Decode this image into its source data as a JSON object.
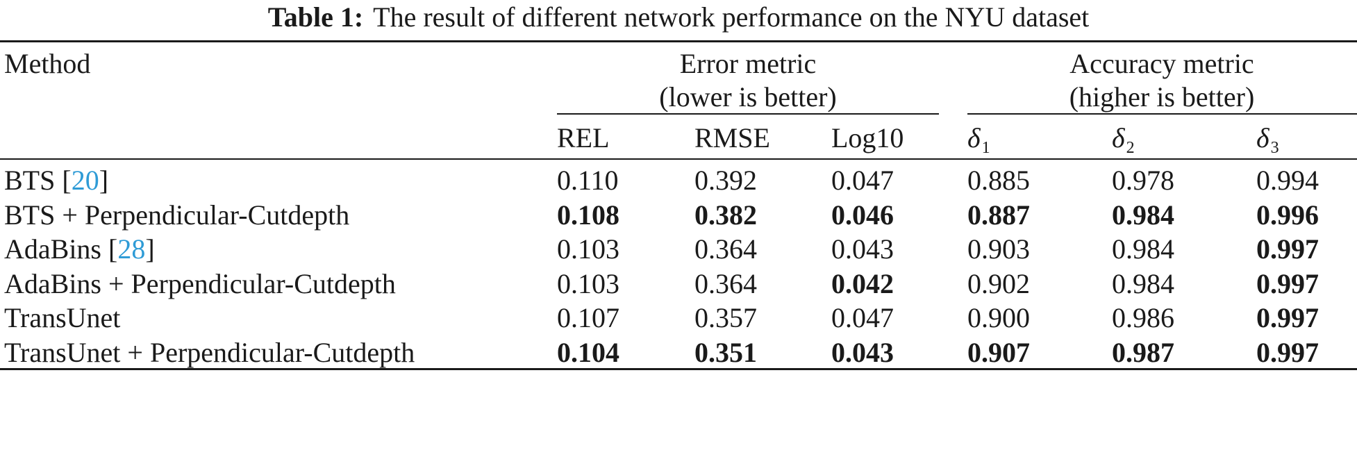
{
  "caption": {
    "label": "Table 1:",
    "text": "The result of different network performance on the NYU dataset"
  },
  "header": {
    "method": "Method",
    "error_group_line1": "Error metric",
    "error_group_line2": "(lower is better)",
    "accuracy_group_line1": "Accuracy metric",
    "accuracy_group_line2": "(higher is better)",
    "columns": [
      "REL",
      "RMSE",
      "Log10",
      "δ",
      "δ",
      "δ"
    ],
    "delta_subscripts": [
      "1",
      "2",
      "3"
    ]
  },
  "rows": [
    {
      "method": "BTS [",
      "cite": "20",
      "method_end": "]",
      "values": [
        "0.110",
        "0.392",
        "0.047",
        "0.885",
        "0.978",
        "0.994"
      ],
      "bold": [
        false,
        false,
        false,
        false,
        false,
        false
      ]
    },
    {
      "method": "BTS + Perpendicular-Cutdepth",
      "cite": "",
      "method_end": "",
      "values": [
        "0.108",
        "0.382",
        "0.046",
        "0.887",
        "0.984",
        "0.996"
      ],
      "bold": [
        true,
        true,
        true,
        true,
        true,
        true
      ]
    },
    {
      "method": "AdaBins [",
      "cite": "28",
      "method_end": "]",
      "values": [
        "0.103",
        "0.364",
        "0.043",
        "0.903",
        "0.984",
        "0.997"
      ],
      "bold": [
        false,
        false,
        false,
        false,
        false,
        true
      ]
    },
    {
      "method": "AdaBins + Perpendicular-Cutdepth",
      "cite": "",
      "method_end": "",
      "values": [
        "0.103",
        "0.364",
        "0.042",
        "0.902",
        "0.984",
        "0.997"
      ],
      "bold": [
        false,
        false,
        true,
        false,
        false,
        true
      ]
    },
    {
      "method": "TransUnet",
      "cite": "",
      "method_end": "",
      "values": [
        "0.107",
        "0.357",
        "0.047",
        "0.900",
        "0.986",
        "0.997"
      ],
      "bold": [
        false,
        false,
        false,
        false,
        false,
        true
      ]
    },
    {
      "method": "TransUnet + Perpendicular-Cutdepth",
      "cite": "",
      "method_end": "",
      "values": [
        "0.104",
        "0.351",
        "0.043",
        "0.907",
        "0.987",
        "0.997"
      ],
      "bold": [
        true,
        true,
        true,
        true,
        true,
        true
      ]
    }
  ],
  "colors": {
    "text": "#1a1a1a",
    "citation": "#2e9bd6"
  }
}
